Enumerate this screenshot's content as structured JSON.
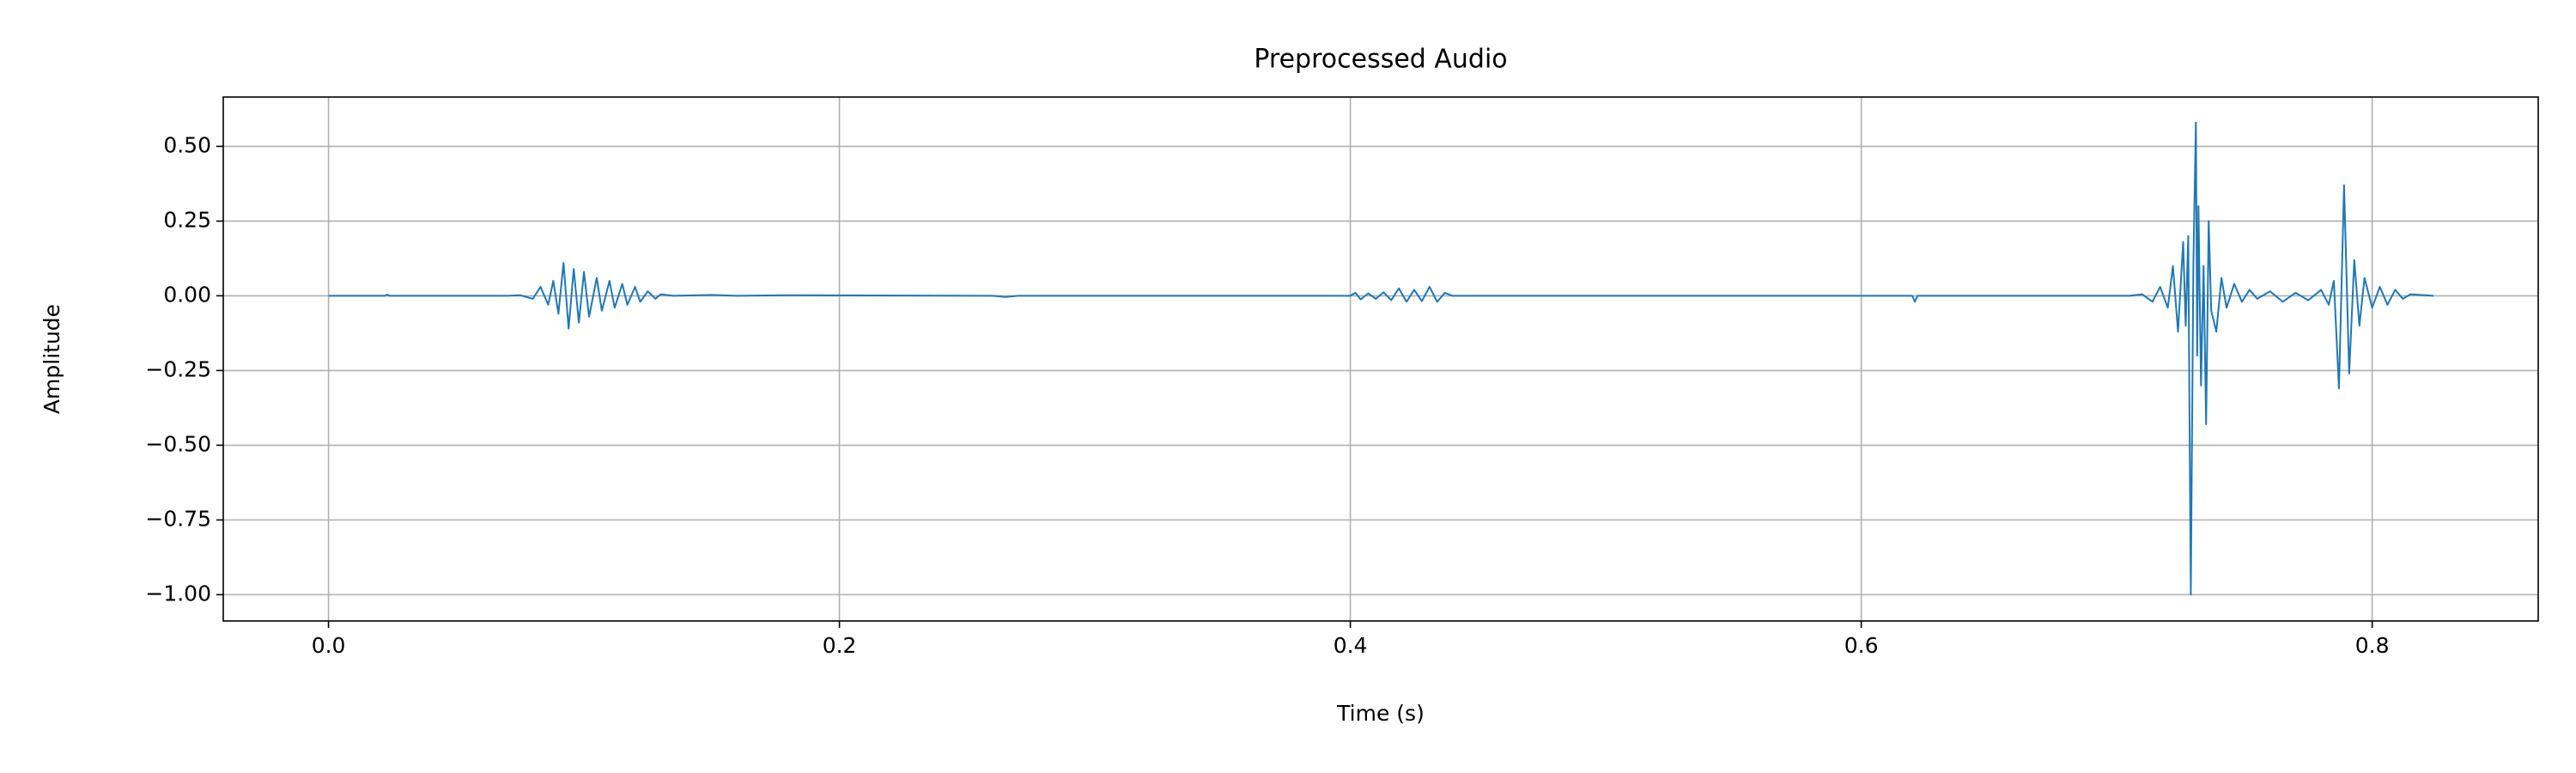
{
  "chart_data": {
    "type": "line",
    "title": "Preprocessed Audio",
    "x_label": "Time (s)",
    "y_label": "Amplitude",
    "color": "#1f77b4",
    "grid": true,
    "xlim": [
      -0.0412,
      0.865
    ],
    "ylim": [
      -1.088,
      0.665
    ],
    "xticks": [
      {
        "value": 0,
        "label": "0.0"
      },
      0.2,
      0.4,
      0.6,
      0.8
    ],
    "yticks": [
      {
        "value": 0.5,
        "label": "0.50"
      },
      {
        "value": 0.25,
        "label": "0.25"
      },
      {
        "value": 0,
        "label": "0.00"
      },
      {
        "value": -0.25,
        "label": "−0.25"
      },
      {
        "value": -0.5,
        "label": "−0.50"
      },
      {
        "value": -0.75,
        "label": "−0.75"
      },
      {
        "value": -1,
        "label": "−1.00"
      }
    ],
    "x": [
      0,
      0.022,
      0.023,
      0.024,
      0.07,
      0.075,
      0.08,
      0.083,
      0.086,
      0.088,
      0.09,
      0.092,
      0.094,
      0.096,
      0.098,
      0.1,
      0.102,
      0.105,
      0.107,
      0.11,
      0.112,
      0.115,
      0.117,
      0.12,
      0.122,
      0.125,
      0.128,
      0.13,
      0.135,
      0.15,
      0.16,
      0.18,
      0.26,
      0.265,
      0.27,
      0.4,
      0.402,
      0.404,
      0.407,
      0.41,
      0.413,
      0.416,
      0.419,
      0.422,
      0.425,
      0.428,
      0.431,
      0.434,
      0.437,
      0.44,
      0.62,
      0.621,
      0.622,
      0.705,
      0.71,
      0.714,
      0.717,
      0.72,
      0.722,
      0.724,
      0.726,
      0.727,
      0.728,
      0.729,
      0.73,
      0.731,
      0.7315,
      0.732,
      0.733,
      0.734,
      0.735,
      0.736,
      0.737,
      0.739,
      0.741,
      0.743,
      0.746,
      0.749,
      0.752,
      0.755,
      0.76,
      0.765,
      0.77,
      0.775,
      0.78,
      0.783,
      0.785,
      0.787,
      0.789,
      0.791,
      0.793,
      0.795,
      0.797,
      0.8,
      0.803,
      0.806,
      0.809,
      0.812,
      0.815,
      0.824
    ],
    "values": [
      0,
      0,
      0.004,
      0,
      0,
      0.002,
      -0.01,
      0.03,
      -0.03,
      0.05,
      -0.06,
      0.11,
      -0.11,
      0.09,
      -0.09,
      0.08,
      -0.07,
      0.06,
      -0.05,
      0.05,
      -0.04,
      0.04,
      -0.03,
      0.03,
      -0.02,
      0.015,
      -0.01,
      0.005,
      0,
      0.003,
      0,
      0.002,
      0,
      -0.004,
      0,
      0,
      0.01,
      -0.012,
      0.008,
      -0.01,
      0.012,
      -0.015,
      0.025,
      -0.02,
      0.02,
      -0.018,
      0.03,
      -0.02,
      0.01,
      0,
      0,
      -0.02,
      0,
      0,
      0.005,
      -0.02,
      0.03,
      -0.04,
      0.1,
      -0.12,
      0.18,
      -0.1,
      0.2,
      -1.0,
      0.1,
      0.58,
      -0.2,
      0.3,
      -0.3,
      0.1,
      -0.43,
      0.25,
      -0.05,
      -0.12,
      0.06,
      -0.04,
      0.04,
      -0.02,
      0.02,
      -0.01,
      0.015,
      -0.02,
      0.01,
      -0.015,
      0.02,
      -0.03,
      0.05,
      -0.31,
      0.37,
      -0.26,
      0.12,
      -0.1,
      0.06,
      -0.04,
      0.03,
      -0.03,
      0.02,
      -0.01,
      0.005,
      0
    ]
  }
}
